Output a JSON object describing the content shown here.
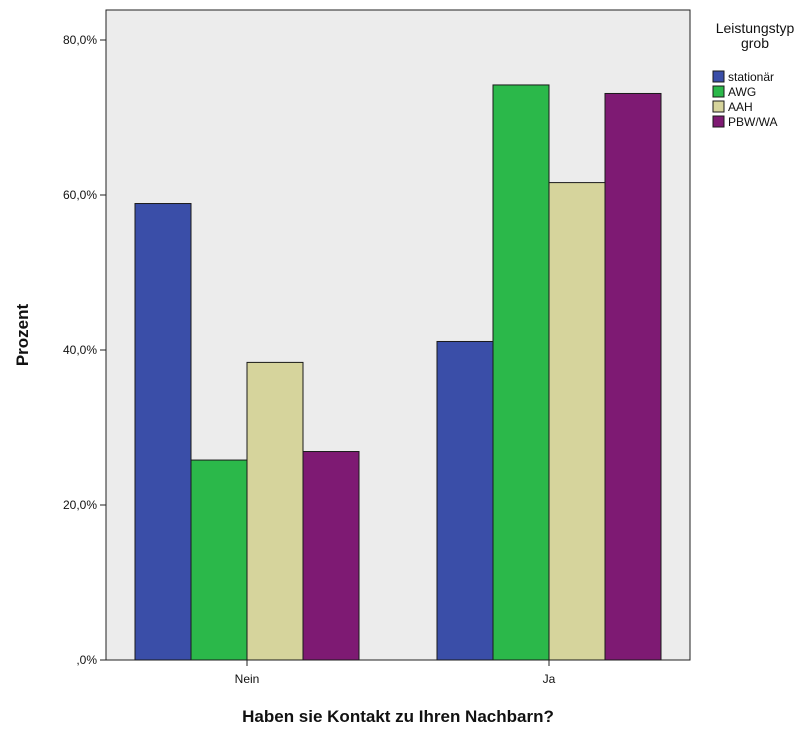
{
  "chart_data": {
    "type": "bar",
    "categories": [
      "Nein",
      "Ja"
    ],
    "series": [
      {
        "name": "stationär",
        "values": [
          58.9,
          41.1
        ],
        "color": "#3a4ea8"
      },
      {
        "name": "AWG",
        "values": [
          25.8,
          74.2
        ],
        "color": "#2bb84a"
      },
      {
        "name": "AAH",
        "values": [
          38.4,
          61.6
        ],
        "color": "#d6d49c"
      },
      {
        "name": "PBW/WA",
        "values": [
          26.9,
          73.1
        ],
        "color": "#7e1a73"
      }
    ],
    "xlabel": "Haben sie Kontakt zu Ihren Nachbarn?",
    "ylabel": "Prozent",
    "ylim": [
      0,
      80
    ],
    "yticks": [
      0,
      20,
      40,
      60,
      80
    ],
    "ytick_labels": [
      ",0%",
      "20,0%",
      "40,0%",
      "60,0%",
      "80,0%"
    ],
    "legend": {
      "title_lines": [
        "Leistungstyp",
        "grob"
      ],
      "placement": "top-right"
    },
    "grid": false,
    "plot_background": "#ececec"
  }
}
